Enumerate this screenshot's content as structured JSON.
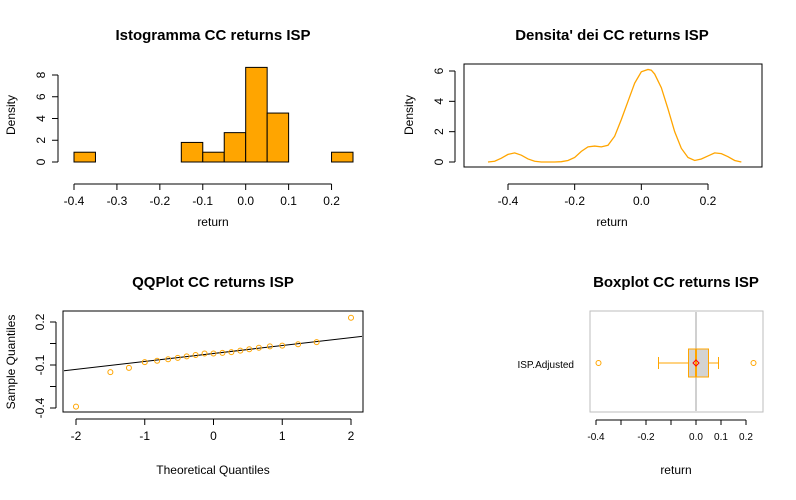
{
  "chart_data": [
    {
      "type": "bar",
      "title": "Istogramma CC returns ISP",
      "xlabel": "return",
      "ylabel": "Density",
      "xlim": [
        -0.4,
        0.25
      ],
      "ylim": [
        0,
        9
      ],
      "bin_width": 0.05,
      "bins": [
        {
          "x0": -0.4,
          "x1": -0.35,
          "value": 0.9
        },
        {
          "x0": -0.35,
          "x1": -0.3,
          "value": 0
        },
        {
          "x0": -0.3,
          "x1": -0.25,
          "value": 0
        },
        {
          "x0": -0.25,
          "x1": -0.2,
          "value": 0
        },
        {
          "x0": -0.2,
          "x1": -0.15,
          "value": 0
        },
        {
          "x0": -0.15,
          "x1": -0.1,
          "value": 1.8
        },
        {
          "x0": -0.1,
          "x1": -0.05,
          "value": 0.9
        },
        {
          "x0": -0.05,
          "x1": 0.0,
          "value": 2.7
        },
        {
          "x0": 0.0,
          "x1": 0.05,
          "value": 8.7
        },
        {
          "x0": 0.05,
          "x1": 0.1,
          "value": 4.5
        },
        {
          "x0": 0.1,
          "x1": 0.15,
          "value": 0
        },
        {
          "x0": 0.15,
          "x1": 0.2,
          "value": 0
        },
        {
          "x0": 0.2,
          "x1": 0.25,
          "value": 0.9
        }
      ],
      "xticks": [
        -0.4,
        -0.3,
        -0.2,
        -0.1,
        0.0,
        0.1,
        0.2
      ],
      "xtick_labels": [
        "-0.4",
        "-0.3",
        "-0.2",
        "-0.1",
        "0.0",
        "0.1",
        "0.2"
      ],
      "yticks": [
        0,
        2,
        4,
        6,
        8
      ],
      "ytick_labels": [
        "0",
        "2",
        "4",
        "6",
        "8"
      ],
      "bar_color": "#FFA500"
    },
    {
      "type": "line",
      "title": "Densita' dei CC returns ISP",
      "xlabel": "return",
      "ylabel": "Density",
      "xlim": [
        -0.48,
        0.34
      ],
      "ylim": [
        0,
        6.3
      ],
      "x": [
        -0.46,
        -0.44,
        -0.42,
        -0.4,
        -0.38,
        -0.36,
        -0.34,
        -0.32,
        -0.3,
        -0.28,
        -0.26,
        -0.24,
        -0.22,
        -0.2,
        -0.18,
        -0.16,
        -0.14,
        -0.12,
        -0.1,
        -0.08,
        -0.06,
        -0.04,
        -0.02,
        0.0,
        0.02,
        0.03,
        0.04,
        0.06,
        0.08,
        0.1,
        0.12,
        0.14,
        0.16,
        0.18,
        0.2,
        0.22,
        0.24,
        0.26,
        0.28,
        0.3
      ],
      "y": [
        0.0,
        0.05,
        0.25,
        0.5,
        0.6,
        0.45,
        0.2,
        0.05,
        0.0,
        0.0,
        0.0,
        0.02,
        0.1,
        0.3,
        0.7,
        1.0,
        1.05,
        1.0,
        1.1,
        1.7,
        2.8,
        4.0,
        5.2,
        5.95,
        6.1,
        6.05,
        5.8,
        4.9,
        3.5,
        2.0,
        0.9,
        0.3,
        0.1,
        0.2,
        0.4,
        0.6,
        0.55,
        0.35,
        0.1,
        0.0
      ],
      "xticks": [
        -0.4,
        -0.2,
        0.0,
        0.2
      ],
      "xtick_labels": [
        "-0.4",
        "-0.2",
        "0.0",
        "0.2"
      ],
      "yticks": [
        0,
        2,
        4,
        6
      ],
      "ytick_labels": [
        "0",
        "2",
        "4",
        "6"
      ],
      "line_color": "#FFA500"
    },
    {
      "type": "scatter",
      "title": "QQPlot CC returns ISP",
      "xlabel": "Theoretical Quantiles",
      "ylabel": "Sample Quantiles",
      "xlim": [
        -2.2,
        2.2
      ],
      "ylim": [
        -0.42,
        0.25
      ],
      "x": [
        -2.0,
        -1.5,
        -1.23,
        -1.0,
        -0.82,
        -0.66,
        -0.52,
        -0.39,
        -0.26,
        -0.13,
        0.0,
        0.13,
        0.26,
        0.39,
        0.52,
        0.66,
        0.82,
        1.0,
        1.23,
        1.5,
        2.0
      ],
      "y": [
        -0.39,
        -0.15,
        -0.12,
        -0.08,
        -0.07,
        -0.06,
        -0.05,
        -0.04,
        -0.03,
        -0.02,
        -0.02,
        -0.015,
        -0.01,
        0.0,
        0.01,
        0.02,
        0.03,
        0.035,
        0.045,
        0.06,
        0.23
      ],
      "qqline": {
        "x": [
          -2.2,
          2.2
        ],
        "y": [
          -0.14,
          0.1
        ]
      },
      "xticks": [
        -2,
        -1,
        0,
        1,
        2
      ],
      "xtick_labels": [
        "-2",
        "-1",
        "0",
        "1",
        "2"
      ],
      "yticks": [
        -0.4,
        -0.1,
        0.2
      ],
      "ytick_labels": [
        "-0.4",
        "-0.1",
        "0.2"
      ],
      "ytick_minor": [
        -0.25,
        0.05
      ],
      "point_color": "#FFA500"
    },
    {
      "type": "box",
      "title": "Boxplot CC returns ISP",
      "xlabel": "return",
      "category": "ISP.Adjusted",
      "xlim": [
        -0.42,
        0.26
      ],
      "whisker_low": -0.15,
      "q1": -0.03,
      "median": 0.0,
      "q3": 0.05,
      "whisker_high": 0.09,
      "mean": 0.0,
      "outliers": [
        -0.39,
        0.23
      ],
      "reference_line": 0.0,
      "xticks": [
        -0.4,
        -0.2,
        0.0,
        0.1,
        0.2
      ],
      "xtick_labels": [
        "-0.4",
        "-0.2",
        "0.0",
        "0.1",
        "0.2"
      ],
      "xtick_minor": [
        -0.3,
        -0.1
      ],
      "box_color": "#FFA500",
      "box_fill": "#D3D3D3",
      "mean_color": "#FF0000",
      "frame_color": "#BEBEBE"
    }
  ]
}
